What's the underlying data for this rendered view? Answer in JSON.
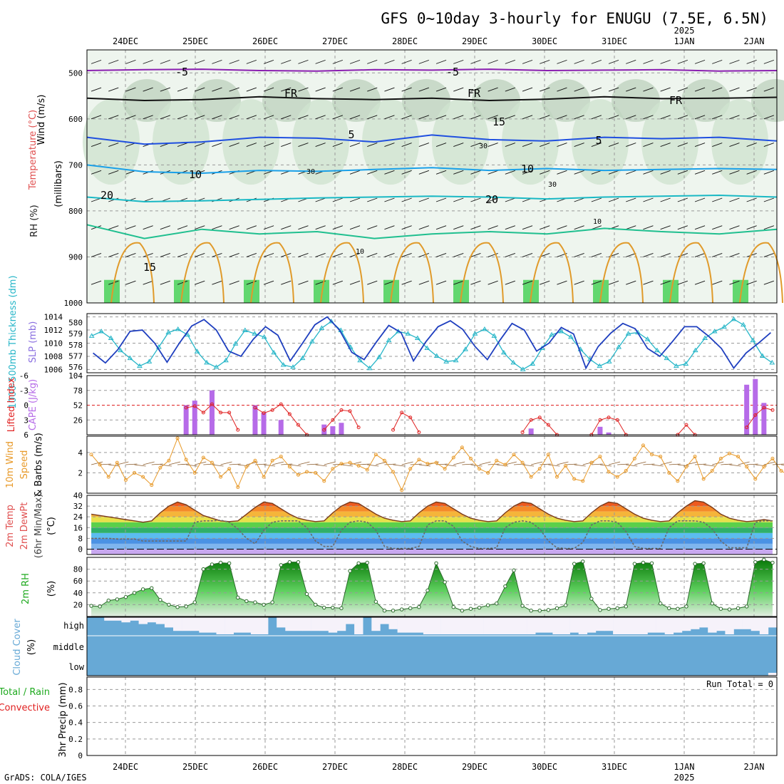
{
  "title": "GFS 0~10day 3-hourly for ENUGU (7.5E, 6.5N)",
  "credit": "GrADS: COLA/IGES",
  "run_total_label": "Run Total = 0",
  "colors": {
    "temp_iso_neg5": "#8a1fb0",
    "temp_iso_fr": "#111111",
    "temp_iso_5": "#1f4fe0",
    "temp_iso_10": "#1aa0e8",
    "temp_iso_15": "#19b8c4",
    "temp_iso_20": "#1fbf8f",
    "temp_iso_warm": "#e09a2a",
    "slp": "#1f3fbf",
    "thickness": "#27b6c8",
    "cape": "#b66be8",
    "lifted": "#e02020",
    "wind_speed": "#e89a2a",
    "rh_green": "#1faa1f",
    "cloud": "#67a9d6",
    "rh_shade": "#cfe4cf"
  },
  "chart_data": [
    {
      "id": "upper_air",
      "type": "heatmap",
      "ylabel_parts": [
        "Wind (m/s)",
        "Temperature (°C)",
        "RH (%)"
      ],
      "ylabel_sub": "(millibars)",
      "y_ticks": [
        "500",
        "600",
        "700",
        "800",
        "900",
        "1000"
      ],
      "ylim": [
        1000,
        450
      ],
      "isotherm_labels": [
        "-5",
        "-5",
        "FR",
        "FR",
        "FR",
        "5",
        "5",
        "10",
        "10",
        "15",
        "15",
        "20",
        "20",
        "10",
        "10",
        "30",
        "30",
        "30"
      ],
      "isotherms": [
        {
          "name": "-5",
          "levels": [
            495,
            493,
            492,
            495,
            496,
            493,
            494,
            492,
            495,
            494,
            493,
            496,
            495
          ]
        },
        {
          "name": "FR",
          "levels": [
            555,
            560,
            558,
            552,
            556,
            558,
            555,
            560,
            557,
            552,
            556,
            555,
            553
          ]
        },
        {
          "name": "5",
          "levels": [
            640,
            655,
            650,
            640,
            642,
            650,
            635,
            645,
            648,
            640,
            643,
            640,
            648
          ]
        },
        {
          "name": "10",
          "levels": [
            700,
            715,
            718,
            712,
            714,
            710,
            706,
            712,
            708,
            712,
            710,
            708,
            710
          ]
        },
        {
          "name": "15",
          "levels": [
            770,
            780,
            778,
            775,
            772,
            770,
            768,
            770,
            774,
            770,
            768,
            766,
            770
          ]
        },
        {
          "name": "20",
          "levels": [
            830,
            860,
            840,
            850,
            845,
            860,
            850,
            845,
            850,
            838,
            845,
            850,
            840
          ]
        }
      ],
      "x_labels": [
        "24DEC",
        "25DEC",
        "26DEC",
        "27DEC",
        "28DEC",
        "29DEC",
        "30DEC",
        "31DEC",
        "1JAN",
        "2JAN"
      ],
      "year_label": "2025"
    },
    {
      "id": "thickness_slp",
      "type": "line",
      "ylabel_left": "1000-500mb Thickness (dm)",
      "ylabel_right": "SLP (mb)",
      "y_ticks_left": [
        "576",
        "577",
        "578",
        "579",
        "580"
      ],
      "y_ticks_right": [
        "1006",
        "1008",
        "1010",
        "1012",
        "1014"
      ],
      "ylim_left": [
        575.5,
        580.8
      ],
      "ylim_right": [
        1005.5,
        1014.5
      ],
      "series": [
        {
          "name": "SLP (mb)",
          "axis": "right",
          "values": [
            1008.5,
            1007,
            1009,
            1011.8,
            1012,
            1010,
            1007.1,
            1010,
            1012.6,
            1013.6,
            1012,
            1008.8,
            1008,
            1010.6,
            1012.5,
            1011.2,
            1007.3,
            1010,
            1012.8,
            1014.0,
            1012,
            1008.6,
            1007.5,
            1010.2,
            1012.7,
            1011.6,
            1007.3,
            1010.2,
            1012.5,
            1013.4,
            1012.1,
            1009.5,
            1007.5,
            1010.4,
            1013.0,
            1012.0,
            1008.8,
            1010,
            1012.4,
            1011.4,
            1006.2,
            1009.5,
            1011.5,
            1013.0,
            1012.2,
            1009.2,
            1008,
            1010.2,
            1012.5,
            1012.5,
            1011.0,
            1009.2,
            1006.2,
            1008.5,
            1010,
            1011.6
          ]
        },
        {
          "name": "Thickness (dm)",
          "axis": "left",
          "values": [
            578.8,
            579.2,
            578.6,
            577.5,
            576.8,
            576.1,
            576.5,
            577.8,
            579.1,
            579.4,
            578.9,
            577.4,
            576.4,
            576.0,
            576.6,
            578.1,
            579.3,
            579.0,
            578.7,
            577.3,
            576.2,
            576.0,
            576.8,
            578.3,
            579.5,
            580.1,
            579.3,
            577.8,
            576.6,
            575.9,
            576.9,
            578.4,
            579.2,
            579.0,
            578.6,
            577.7,
            577.0,
            576.5,
            576.6,
            577.6,
            579.0,
            579.4,
            578.8,
            577.3,
            576.4,
            575.8,
            576.3,
            577.7,
            578.9,
            579.2,
            578.7,
            577.6,
            576.7,
            576.1,
            576.5,
            577.8,
            579.0,
            579.1,
            578.5,
            577.5,
            576.8,
            576.1,
            576.3,
            577.5,
            578.6,
            579.2,
            579.6,
            580.3,
            579.8,
            578.4,
            577.0,
            576.4
          ]
        }
      ]
    },
    {
      "id": "cape_li",
      "type": "bar",
      "ylabel_left": "Lifted Index",
      "ylabel_right": "CAPE (J/kg)",
      "y_ticks_left": [
        "-6",
        "-3",
        "0",
        "3",
        "6"
      ],
      "y_ticks_right": [
        "26",
        "52",
        "78",
        "104"
      ],
      "ylim_left": [
        6,
        -6
      ],
      "ylim_right": [
        0,
        104
      ],
      "series": [
        {
          "name": "CAPE (J/kg)",
          "axis": "right",
          "x_index": [
            11,
            12,
            14,
            19,
            20,
            22,
            27,
            28,
            29,
            51,
            59,
            60,
            76,
            77,
            78
          ],
          "values": [
            52,
            60,
            78,
            52,
            39,
            26,
            18,
            15,
            21,
            11,
            14,
            4,
            88,
            98,
            56
          ]
        },
        {
          "name": "Lifted Index",
          "axis": "left",
          "segments": [
            {
              "x_index": [
                11,
                12,
                13,
                14,
                15,
                16,
                17
              ],
              "values": [
                0.5,
                0.2,
                1.5,
                -0.2,
                1.5,
                1.5,
                5.0
              ]
            },
            {
              "x_index": [
                19,
                20,
                21,
                22,
                23,
                24,
                25
              ],
              "values": [
                0.5,
                1.6,
                1.0,
                -0.2,
                1.8,
                4.0,
                6.0
              ]
            },
            {
              "x_index": [
                27,
                28,
                29,
                30,
                31
              ],
              "values": [
                5.0,
                3.0,
                1.0,
                1.2,
                4.5
              ]
            },
            {
              "x_index": [
                35,
                36,
                37,
                38
              ],
              "values": [
                5.0,
                1.5,
                2.5,
                5.5
              ]
            },
            {
              "x_index": [
                50,
                51,
                52,
                53,
                54
              ],
              "values": [
                5.5,
                3.0,
                2.5,
                4.0,
                6.0
              ]
            },
            {
              "x_index": [
                58,
                59,
                60,
                61,
                62
              ],
              "values": [
                6.0,
                3.0,
                2.5,
                3.0,
                6.0
              ]
            },
            {
              "x_index": [
                68,
                69,
                70
              ],
              "values": [
                6.0,
                4.0,
                6.0
              ]
            },
            {
              "x_index": [
                76,
                77,
                78,
                79
              ],
              "values": [
                4.5,
                2.0,
                0.5,
                1.0
              ]
            }
          ]
        }
      ]
    },
    {
      "id": "wind10m",
      "type": "line",
      "ylabel_parts": [
        "10m Wind",
        "Speed",
        "& Barbs (m/s)"
      ],
      "y_ticks": [
        "2",
        "4"
      ],
      "ylim": [
        0,
        5.6
      ],
      "series": [
        {
          "name": "10m Wind Speed",
          "values": [
            3.8,
            2.8,
            1.6,
            3.0,
            1.3,
            2.0,
            1.6,
            0.8,
            2.5,
            3.2,
            5.4,
            3.3,
            2.0,
            3.5,
            3.0,
            1.6,
            2.4,
            0.6,
            2.6,
            3.2,
            1.6,
            3.2,
            3.6,
            2.6,
            1.8,
            2.1,
            2.0,
            1.2,
            2.4,
            2.9,
            3.0,
            2.7,
            2.3,
            3.8,
            3.2,
            2.1,
            0.3,
            2.4,
            3.3,
            2.9,
            3.0,
            2.4,
            3.5,
            4.5,
            3.4,
            2.4,
            2.0,
            3.2,
            2.8,
            3.8,
            3.0,
            1.6,
            2.4,
            3.8,
            1.6,
            2.7,
            1.4,
            1.2,
            3.0,
            3.6,
            2.1,
            1.6,
            2.2,
            3.4,
            4.7,
            3.8,
            3.6,
            2.0,
            1.2,
            2.6,
            3.6,
            1.4,
            2.2,
            3.4,
            3.9,
            3.6,
            2.6,
            1.4,
            2.6,
            3.4,
            2.2,
            1.7
          ]
        }
      ]
    },
    {
      "id": "temp2m",
      "type": "line",
      "ylabel_parts": [
        "2m Temp",
        "2m DewPt",
        "(6hr Min/Max)",
        "(°C)"
      ],
      "y_ticks": [
        "0",
        "8",
        "16",
        "24",
        "32",
        "40"
      ],
      "ylim": [
        -4,
        40
      ],
      "series": [
        {
          "name": "2m Temp",
          "values": [
            26,
            25,
            24,
            23,
            22,
            21,
            20,
            21,
            27,
            32,
            35,
            33,
            29,
            25,
            23,
            21,
            20.5,
            21,
            26,
            31,
            35,
            34,
            30,
            26,
            23,
            21.5,
            20.5,
            21,
            27,
            32,
            35,
            34,
            30,
            26,
            23,
            21.5,
            20.5,
            21,
            27,
            32,
            35,
            34,
            30,
            26,
            23,
            21.5,
            20.5,
            21,
            27,
            32,
            35,
            34,
            30,
            26,
            23,
            21.5,
            20.5,
            21,
            27,
            32,
            35,
            34,
            30,
            26,
            23,
            21.5,
            20.5,
            21,
            27,
            32,
            36,
            35,
            31,
            26,
            23,
            21.5,
            20.5,
            21,
            22,
            21
          ]
        },
        {
          "name": "2m DewPt",
          "values": [
            8,
            8,
            8,
            7.5,
            7.5,
            7.5,
            6,
            6,
            6,
            6,
            6,
            6,
            20,
            21,
            21,
            21.5,
            20,
            15,
            8,
            4,
            14,
            20,
            21,
            21,
            21,
            16,
            6,
            2,
            2,
            14,
            20,
            21,
            20,
            14,
            2,
            0.5,
            0.5,
            0.5,
            2,
            18,
            21,
            21,
            17,
            6,
            2,
            0.5,
            0.5,
            1,
            16,
            20,
            21,
            20,
            15,
            6,
            1,
            0.5,
            0.5,
            5,
            18,
            21,
            21,
            20,
            13,
            2,
            0.5,
            0.5,
            0.5,
            16,
            21,
            21,
            21,
            20,
            15,
            6,
            1,
            1,
            1,
            20,
            21,
            21
          ]
        }
      ]
    },
    {
      "id": "rh2m",
      "type": "area",
      "ylabel_parts": [
        "2m RH",
        "(%)"
      ],
      "y_ticks": [
        "20",
        "40",
        "60",
        "80"
      ],
      "ylim": [
        0,
        100
      ],
      "series": [
        {
          "name": "2m RH",
          "values": [
            18,
            17,
            27,
            29,
            33,
            40,
            46,
            48,
            28,
            20,
            16,
            17,
            24,
            80,
            88,
            91,
            90,
            32,
            26,
            24,
            20,
            24,
            87,
            92,
            92,
            38,
            20,
            15,
            15,
            14,
            77,
            90,
            91,
            25,
            10,
            10,
            12,
            14,
            16,
            44,
            90,
            58,
            16,
            10,
            13,
            15,
            19,
            22,
            51,
            78,
            18,
            10,
            10,
            11,
            14,
            19,
            89,
            93,
            30,
            11,
            13,
            14,
            17,
            89,
            91,
            90,
            22,
            14,
            13,
            17,
            89,
            90,
            22,
            13,
            12,
            14,
            17,
            92,
            96,
            91
          ]
        }
      ]
    },
    {
      "id": "cloud",
      "type": "bar",
      "ylabel_parts": [
        "Cloud Cover",
        "(%)"
      ],
      "y_ticks": [
        "high",
        "middle",
        "low"
      ],
      "series": [
        {
          "name": "high",
          "values": [
            100,
            100,
            80,
            80,
            70,
            80,
            60,
            70,
            60,
            40,
            20,
            20,
            20,
            10,
            10,
            0,
            0,
            10,
            10,
            0,
            0,
            100,
            40,
            20,
            20,
            20,
            20,
            20,
            10,
            20,
            60,
            0,
            100,
            20,
            60,
            30,
            10,
            10,
            10,
            0,
            0,
            0,
            0,
            0,
            0,
            0,
            0,
            0,
            0,
            0,
            0,
            0,
            10,
            10,
            0,
            0,
            10,
            0,
            10,
            20,
            20,
            0,
            0,
            0,
            0,
            10,
            10,
            0,
            10,
            20,
            30,
            40,
            10,
            20,
            0,
            30,
            30,
            20,
            0,
            40
          ]
        },
        {
          "name": "low",
          "values": [
            0,
            0,
            0,
            0,
            0,
            0,
            0,
            0,
            0,
            0,
            0,
            0,
            0,
            0,
            0,
            0,
            0,
            0,
            0,
            0,
            0,
            0,
            0,
            0,
            0,
            0,
            0,
            0,
            0,
            0,
            0,
            0,
            0,
            0,
            0,
            0,
            0,
            0,
            0,
            0,
            0,
            0,
            0,
            0,
            0,
            0,
            0,
            0,
            0,
            0,
            0,
            0,
            0,
            0,
            0,
            0,
            0,
            0,
            0,
            0,
            0,
            0,
            0,
            0,
            0,
            0,
            0,
            0,
            0,
            0,
            0,
            0,
            0,
            0,
            0,
            0,
            0,
            0,
            0,
            10
          ]
        }
      ]
    },
    {
      "id": "precip",
      "type": "bar",
      "ylabel_parts": [
        "Total / Rain",
        "Convective",
        "3hr Precip (mm)"
      ],
      "y_ticks": [
        "0",
        "0.2",
        "0.4",
        "0.6",
        "0.8"
      ],
      "ylim": [
        0,
        0.95
      ],
      "series": [
        {
          "name": "3hr Precip",
          "values": []
        }
      ]
    }
  ]
}
